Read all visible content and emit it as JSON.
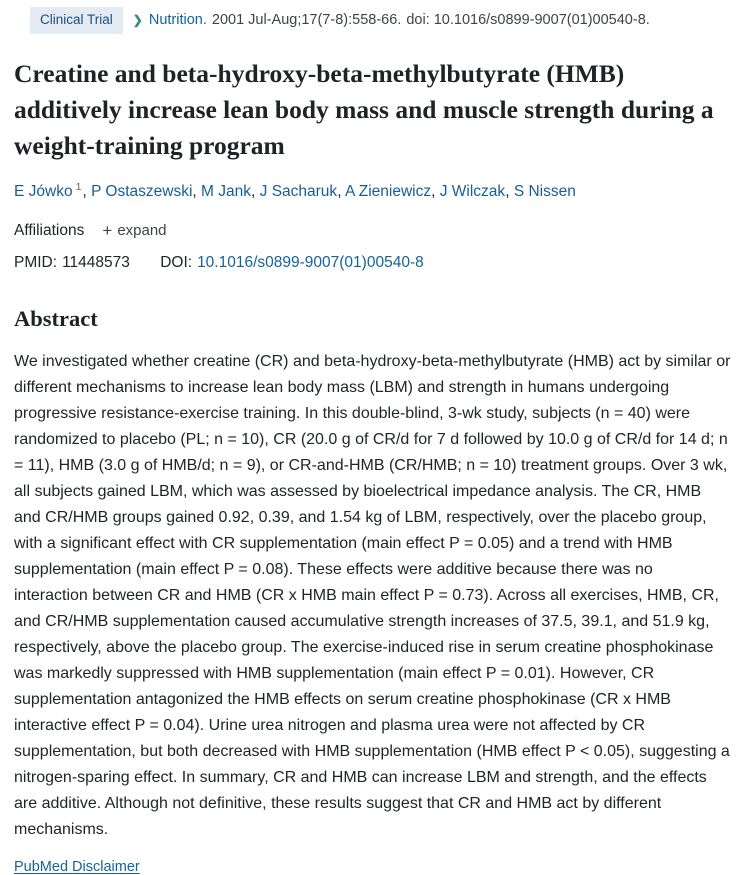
{
  "header": {
    "badge": "Clinical Trial",
    "journal": "Nutrition.",
    "citation": "2001 Jul-Aug;17(7-8):558-66.",
    "doi_text": "doi: 10.1016/s0899-9007(01)00540-8.",
    "chevron": "❯"
  },
  "title": "Creatine and beta-hydroxy-beta-methylbutyrate (HMB) additively increase lean body mass and muscle strength during a weight-training program",
  "authors": [
    {
      "name": "E Jówko",
      "sup": "1",
      "sep": ", "
    },
    {
      "name": "P Ostaszewski",
      "sep": ", "
    },
    {
      "name": "M Jank",
      "sep": ", "
    },
    {
      "name": "J Sacharuk",
      "sep": ", "
    },
    {
      "name": "A Zieniewicz",
      "sep": ", "
    },
    {
      "name": "J Wilczak",
      "sep": ", "
    },
    {
      "name": "S Nissen",
      "sep": ""
    }
  ],
  "affiliations": {
    "label": "Affiliations",
    "plus": "+",
    "expand": "expand"
  },
  "ids": {
    "pmid_label": "PMID:",
    "pmid_value": "11448573",
    "doi_label": "DOI:",
    "doi_value": "10.1016/s0899-9007(01)00540-8"
  },
  "abstract": {
    "heading": "Abstract",
    "text": "We investigated whether creatine (CR) and beta-hydroxy-beta-methylbutyrate (HMB) act by similar or different mechanisms to increase lean body mass (LBM) and strength in humans undergoing progressive resistance-exercise training. In this double-blind, 3-wk study, subjects (n = 40) were randomized to placebo (PL; n = 10), CR (20.0 g of CR/d for 7 d followed by 10.0 g of CR/d for 14 d; n = 11), HMB (3.0 g of HMB/d; n = 9), or CR-and-HMB (CR/HMB; n = 10) treatment groups. Over 3 wk, all subjects gained LBM, which was assessed by bioelectrical impedance analysis. The CR, HMB and CR/HMB groups gained 0.92, 0.39, and 1.54 kg of LBM, respectively, over the placebo group, with a significant effect with CR supplementation (main effect P = 0.05) and a trend with HMB supplementation (main effect P = 0.08). These effects were additive because there was no interaction between CR and HMB (CR x HMB main effect P = 0.73). Across all exercises, HMB, CR, and CR/HMB supplementation caused accumulative strength increases of 37.5, 39.1, and 51.9 kg, respectively, above the placebo group. The exercise-induced rise in serum creatine phosphokinase was markedly suppressed with HMB supplementation (main effect P = 0.01). However, CR supplementation antagonized the HMB effects on serum creatine phosphokinase (CR x HMB interactive effect P = 0.04). Urine urea nitrogen and plasma urea were not affected by CR supplementation, but both decreased with HMB supplementation (HMB effect P < 0.05), suggesting a nitrogen-sparing effect. In summary, CR and HMB can increase LBM and strength, and the effects are additive. Although not definitive, these results suggest that CR and HMB act by different mechanisms."
  },
  "footer": {
    "disclaimer": "PubMed Disclaimer"
  }
}
